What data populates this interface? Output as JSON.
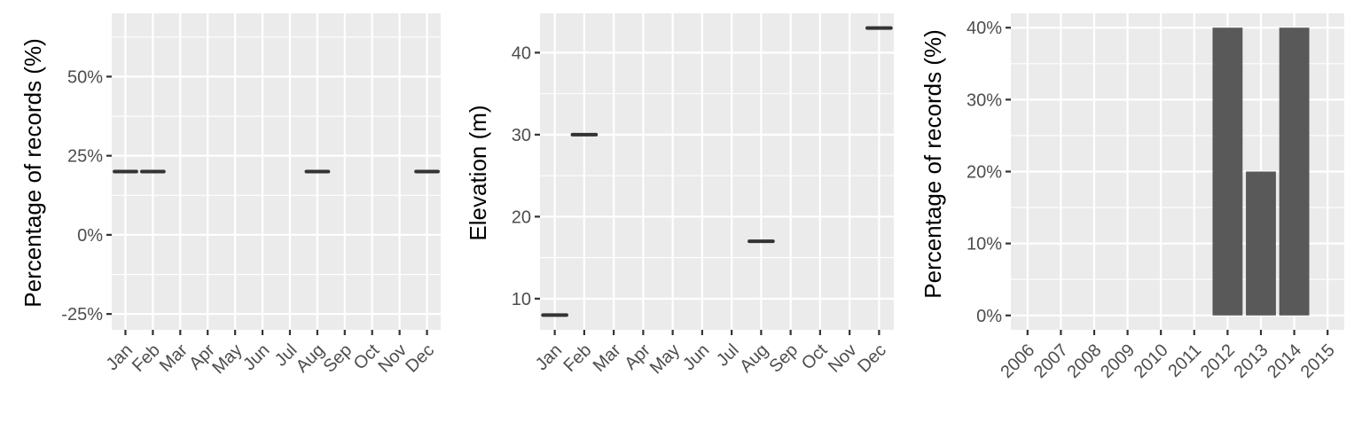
{
  "chart_data": [
    {
      "type": "line",
      "mark": "horizontal-segment",
      "xlabel": "",
      "ylabel": "Percentage of records (%)",
      "categories": [
        "Jan",
        "Feb",
        "Mar",
        "Apr",
        "May",
        "Jun",
        "Jul",
        "Aug",
        "Sep",
        "Oct",
        "Nov",
        "Dec"
      ],
      "y_ticks": [
        -25,
        0,
        25,
        50
      ],
      "y_tick_labels": [
        "-25%",
        "0%",
        "25%",
        "50%"
      ],
      "ylim": [
        -30,
        70
      ],
      "grid": true,
      "points": [
        {
          "x": "Jan",
          "y": 20
        },
        {
          "x": "Feb",
          "y": 20
        },
        {
          "x": "Aug",
          "y": 20
        },
        {
          "x": "Dec",
          "y": 20
        }
      ]
    },
    {
      "type": "line",
      "mark": "horizontal-segment",
      "xlabel": "",
      "ylabel": "Elevation (m)",
      "categories": [
        "Jan",
        "Feb",
        "Mar",
        "Apr",
        "May",
        "Jun",
        "Jul",
        "Aug",
        "Sep",
        "Oct",
        "Nov",
        "Dec"
      ],
      "y_ticks": [
        10,
        20,
        30,
        40
      ],
      "y_tick_labels": [
        "10",
        "20",
        "30",
        "40"
      ],
      "ylim": [
        6.2,
        44.8
      ],
      "grid": true,
      "points": [
        {
          "x": "Jan",
          "y": 8
        },
        {
          "x": "Feb",
          "y": 30
        },
        {
          "x": "Aug",
          "y": 17
        },
        {
          "x": "Dec",
          "y": 43
        }
      ]
    },
    {
      "type": "bar",
      "xlabel": "",
      "ylabel": "Percentage of records (%)",
      "categories": [
        "2006",
        "2007",
        "2008",
        "2009",
        "2010",
        "2011",
        "2012",
        "2013",
        "2014",
        "2015"
      ],
      "values": [
        0,
        0,
        0,
        0,
        0,
        0,
        40,
        20,
        40,
        0
      ],
      "y_ticks": [
        0,
        10,
        20,
        30,
        40
      ],
      "y_tick_labels": [
        "0%",
        "10%",
        "20%",
        "30%",
        "40%"
      ],
      "ylim": [
        -2,
        42
      ],
      "grid": true
    }
  ]
}
